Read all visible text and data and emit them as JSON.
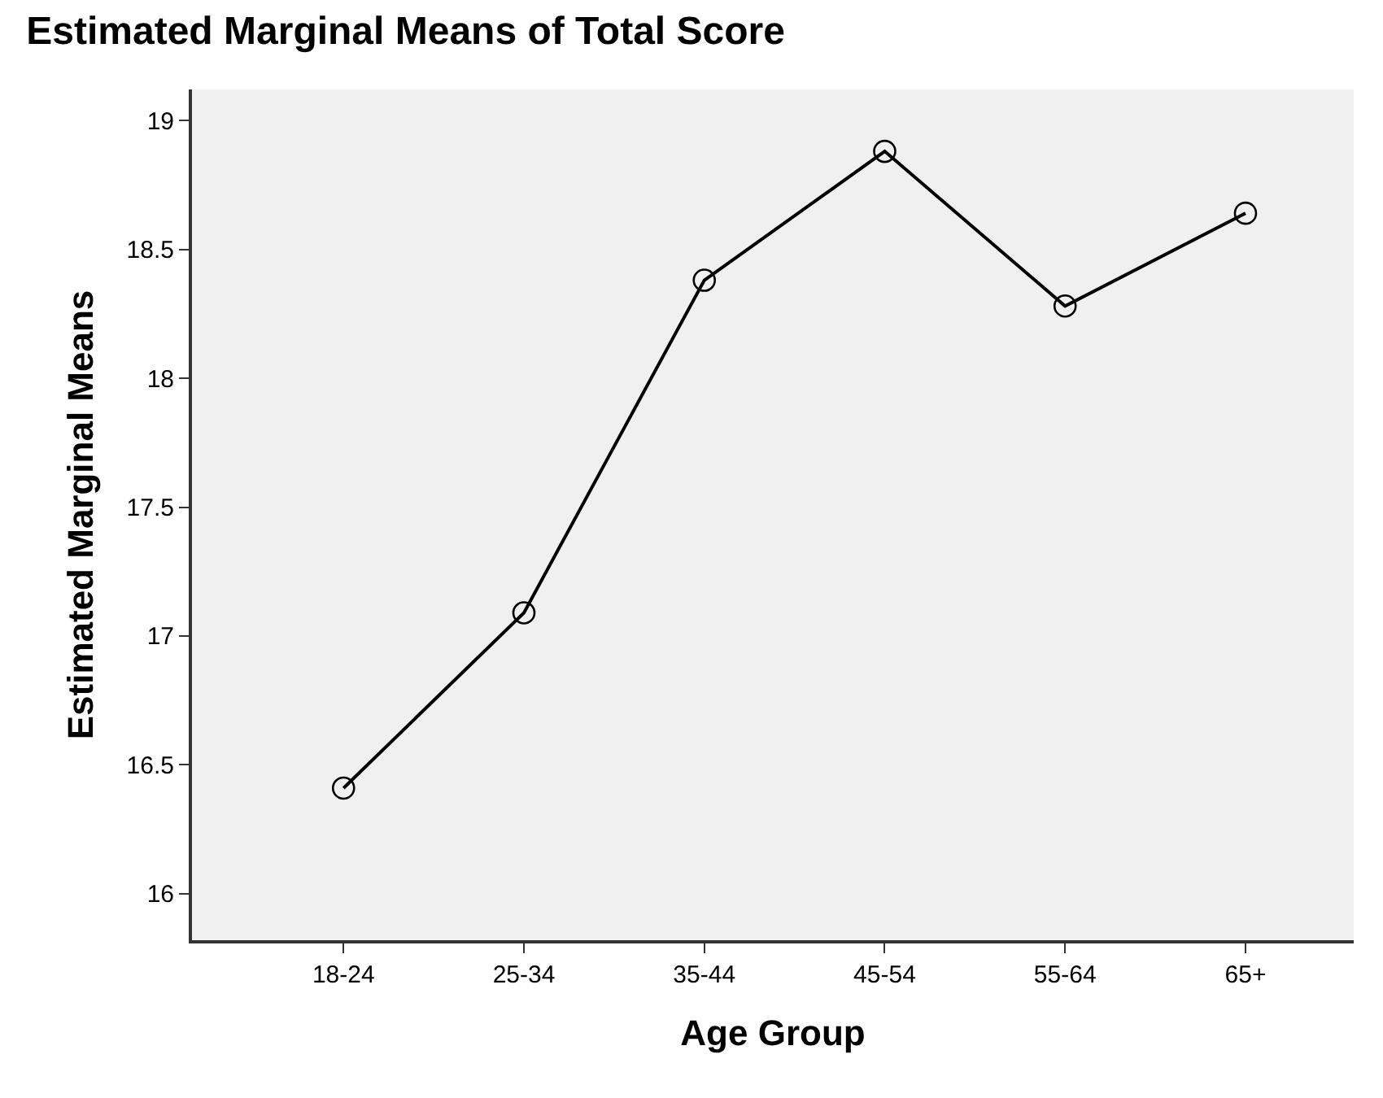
{
  "chart_data": {
    "type": "line",
    "title": "Estimated Marginal Means of Total Score",
    "xlabel": "Age Group",
    "ylabel": "Estimated Marginal Means",
    "categories": [
      "18-24",
      "25-34",
      "35-44",
      "45-54",
      "55-64",
      "65+"
    ],
    "series": [
      {
        "color": "#000000",
        "values": [
          16.41,
          17.09,
          18.38,
          18.88,
          18.28,
          18.64
        ]
      }
    ],
    "ylim": [
      15.82,
      19.12
    ],
    "yticks": [
      16,
      16.5,
      17,
      17.5,
      18,
      18.5,
      19
    ],
    "marker": "circle",
    "line_style": "solid"
  }
}
